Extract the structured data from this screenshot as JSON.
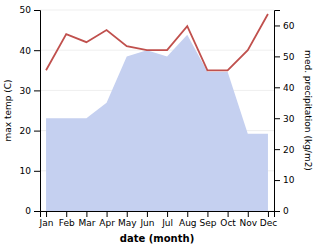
{
  "chart_data": {
    "type": "line",
    "x_label": "date (month)",
    "y_label": "max temp (C)",
    "y2_label": "med. precipitation (kg/m2)",
    "categories": [
      "Jan",
      "Feb",
      "Mar",
      "Apr",
      "May",
      "Jun",
      "Jul",
      "Aug",
      "Sep",
      "Oct",
      "Nov",
      "Dec"
    ],
    "series": [
      {
        "type": "area",
        "axis": "y2",
        "color": "#c5d0f0",
        "values": [
          30,
          30,
          30,
          35,
          50,
          52,
          50,
          57,
          45,
          45,
          25,
          25
        ]
      },
      {
        "type": "line",
        "color": "#c0504d",
        "values": [
          35,
          44,
          42,
          45,
          41,
          40,
          40,
          46,
          35,
          35,
          40,
          49
        ]
      }
    ],
    "ylim": [
      0,
      50
    ],
    "yticks": [
      0,
      10,
      20,
      30,
      40,
      50
    ],
    "y2lim": [
      0,
      65
    ],
    "y2ticks": [
      0,
      10,
      20,
      30,
      40,
      50,
      60
    ],
    "grid": true
  }
}
